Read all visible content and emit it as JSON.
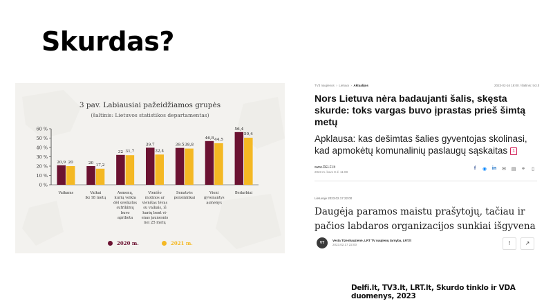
{
  "slide": {
    "title": "Skurdas?",
    "footer_source": "Delfi.lt, TV3.lt, LRT.lt, Skurdo tinklo ir VDA duomenys, 2023"
  },
  "chart_data": {
    "type": "bar",
    "title": "3 pav. Labiausiai pažeidžiamos grupės",
    "subtitle": "(šaltinis: Lietuvos statistikos departamentas)",
    "y_ticks": [
      "60 %",
      "50 %",
      "40 %",
      "30 %",
      "20 %",
      "10 %",
      "0 %"
    ],
    "ylim": [
      0,
      60
    ],
    "categories": [
      [
        "Vaikams"
      ],
      [
        "Vaikai",
        "iki 18 metų"
      ],
      [
        "Asmenų,",
        "kurių veikla",
        "dėl sveikatos",
        "sutrikimų",
        "buvo",
        "apribota"
      ],
      [
        "Vienišo",
        "motinos ar",
        "vienišas tėvas",
        "su vaikais, iš",
        "kurių bent vi-",
        "enas jaunesnis",
        "nei 25 metų"
      ],
      [
        "Senatvės",
        "pensininkai"
      ],
      [
        "Vieni",
        "gyvenantys",
        "asmenys"
      ],
      [
        "Bedarbiai"
      ]
    ],
    "series": [
      {
        "name": "2020 m.",
        "color": "#6b1231",
        "values": [
          20.9,
          20,
          32,
          39.7,
          39.5,
          46.8,
          56.4
        ],
        "labels": [
          "20,9",
          "20",
          "32",
          "39.7",
          "39.5",
          "46,8",
          "56,4"
        ]
      },
      {
        "name": "2021 m.",
        "color": "#f4b823",
        "values": [
          20,
          17.2,
          31.7,
          32.4,
          38.8,
          44.5,
          50.4
        ],
        "labels": [
          "20",
          "17,2",
          "31,7",
          "32,4",
          "38,8",
          "44,5",
          "50,4"
        ]
      }
    ],
    "grid": false,
    "legend": "bottom"
  },
  "news": {
    "breadcrumb": [
      "TV3 naujienos",
      "Lietuva",
      "Aktualijos"
    ],
    "date_line": "2023-02-16 18:00 / šaltinis: tv3.lt",
    "headline1": "Nors Lietuva nėra badaujanti šalis, skęsta skurde: toks vargas buvo įprastas prieš šimtą metų",
    "headline2": "Apklausa: kas dešimtas šalies gyventojas skolinasi, kad apmokėtų komunalinių paslaugų sąskaitas",
    "comment_count": "1",
    "source_name": "www.DELFI.lt",
    "source_date": "2023 m. kovo 8 d. 11:08",
    "share_icons": [
      "facebook-icon",
      "messenger-icon",
      "linkedin-icon",
      "email-icon",
      "print-icon",
      "link-icon",
      "bookmark-icon"
    ],
    "category_date": "Lietuvoje   2023.02.17 22:00",
    "headline3": "Daugėja paramos maistu prašytojų, tačiau ir pačios labdaros organizacijos sunkiai išgyvena",
    "author_initials": "VT",
    "author_name": "Vesta Tizenhauzienė, LRT TV naujienų tarnyba, LRT.lt",
    "author_date": "2023.02.17 22:00",
    "action_exclaim": "!",
    "action_share": "↗"
  }
}
